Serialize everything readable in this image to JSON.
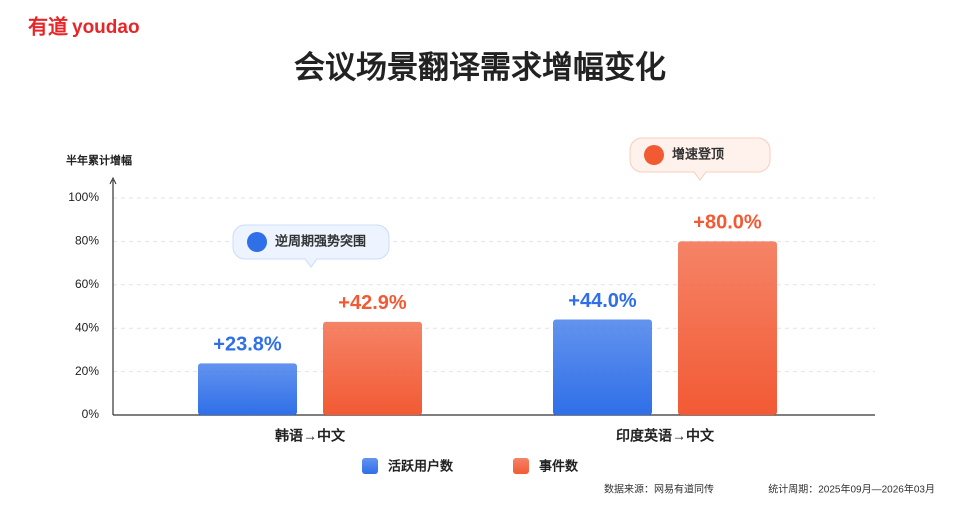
{
  "brand": {
    "logo": "有道",
    "name": "youdao"
  },
  "chart_data": {
    "type": "bar",
    "title": "会议场景翻译需求增幅变化",
    "ylabel": "半年累计增幅",
    "categories": [
      "韩语→中文",
      "印度英语→中文"
    ],
    "series": [
      {
        "name": "活跃用户数",
        "color": "#2f6fe8",
        "values": [
          23.8,
          44.0
        ],
        "value_labels": [
          "+23.8%",
          "+44.0%"
        ]
      },
      {
        "name": "事件数",
        "color": "#f25a34",
        "values": [
          42.9,
          80.0
        ],
        "value_labels": [
          "+42.9%",
          "+80.0%"
        ]
      }
    ],
    "ylim": [
      0,
      100
    ],
    "yticks": [
      {
        "value": 0,
        "label": "0%"
      },
      {
        "value": 20,
        "label": "20%"
      },
      {
        "value": 40,
        "label": "40%"
      },
      {
        "value": 60,
        "label": "60%"
      },
      {
        "value": 80,
        "label": "80%"
      },
      {
        "value": 100,
        "label": "100%"
      }
    ],
    "grid": true,
    "annotations": [
      "逆周期强势突围",
      "增速登顶"
    ]
  },
  "footer": {
    "source": "数据来源：网易有道同传",
    "period": "统计周期：2025年09月—2026年03月"
  }
}
